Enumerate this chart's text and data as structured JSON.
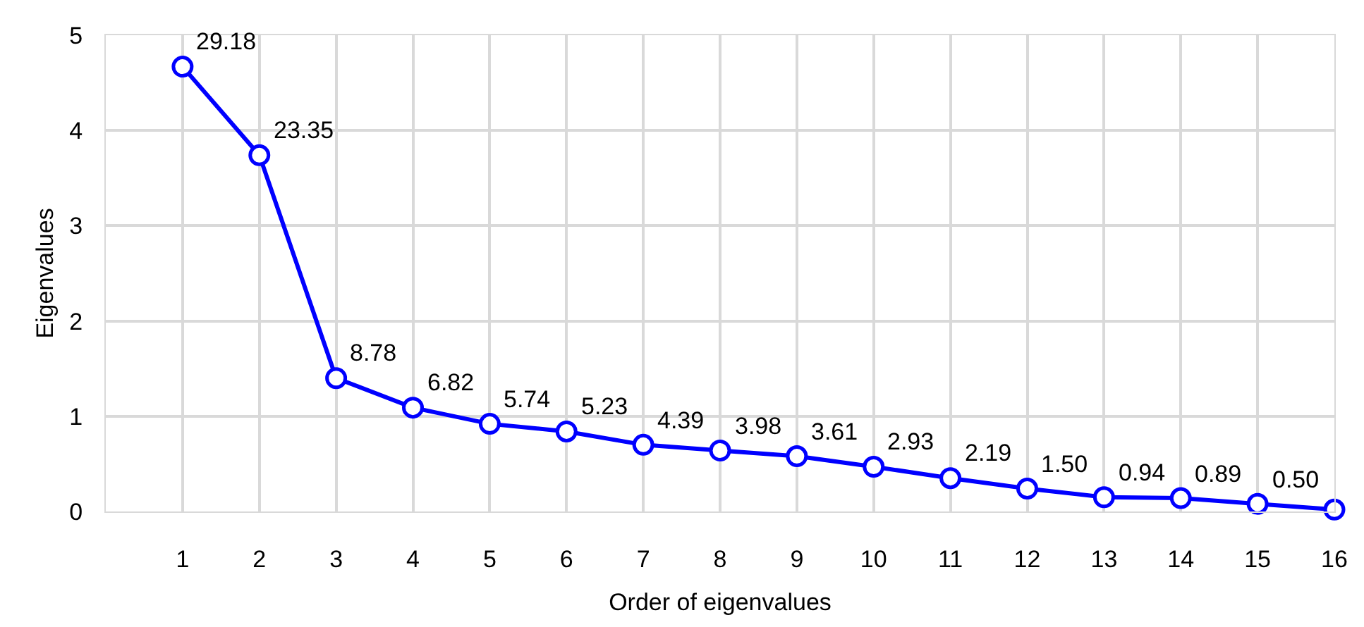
{
  "chart_data": {
    "type": "line",
    "xlabel": "Order of eigenvalues",
    "ylabel": "Eigenvalues",
    "x": [
      1,
      2,
      3,
      4,
      5,
      6,
      7,
      8,
      9,
      10,
      11,
      12,
      13,
      14,
      15,
      16
    ],
    "series": [
      {
        "color": "#0000ff",
        "values": [
          4.67,
          3.74,
          1.4,
          1.09,
          0.92,
          0.84,
          0.7,
          0.64,
          0.58,
          0.47,
          0.35,
          0.24,
          0.15,
          0.14,
          0.08,
          0.02
        ]
      }
    ],
    "annotations": [
      {
        "text": "29.18",
        "x": 1,
        "y": 4.67
      },
      {
        "text": "23.35",
        "x": 2,
        "y": 3.74
      },
      {
        "text": "8.78",
        "x": 3,
        "y": 1.4
      },
      {
        "text": "6.82",
        "x": 4,
        "y": 1.09
      },
      {
        "text": "5.74",
        "x": 5,
        "y": 0.92
      },
      {
        "text": "5.23",
        "x": 6,
        "y": 0.84
      },
      {
        "text": "4.39",
        "x": 7,
        "y": 0.7
      },
      {
        "text": "3.98",
        "x": 8,
        "y": 0.64
      },
      {
        "text": "3.61",
        "x": 9,
        "y": 0.58
      },
      {
        "text": "2.93",
        "x": 10,
        "y": 0.47
      },
      {
        "text": "2.19",
        "x": 11,
        "y": 0.35
      },
      {
        "text": "1.50",
        "x": 12,
        "y": 0.24
      },
      {
        "text": "0.94",
        "x": 13,
        "y": 0.15
      },
      {
        "text": "0.89",
        "x": 14,
        "y": 0.14
      },
      {
        "text": "0.50",
        "x": 15,
        "y": 0.08
      }
    ],
    "xlim": [
      0,
      16
    ],
    "xticks": [
      1,
      2,
      3,
      4,
      5,
      6,
      7,
      8,
      9,
      10,
      11,
      12,
      13,
      14,
      15,
      16
    ],
    "ylim": [
      0,
      5
    ],
    "yticks": [
      0,
      1,
      2,
      3,
      4,
      5
    ],
    "grid": true,
    "marker": "circle",
    "line_style": "solid"
  }
}
